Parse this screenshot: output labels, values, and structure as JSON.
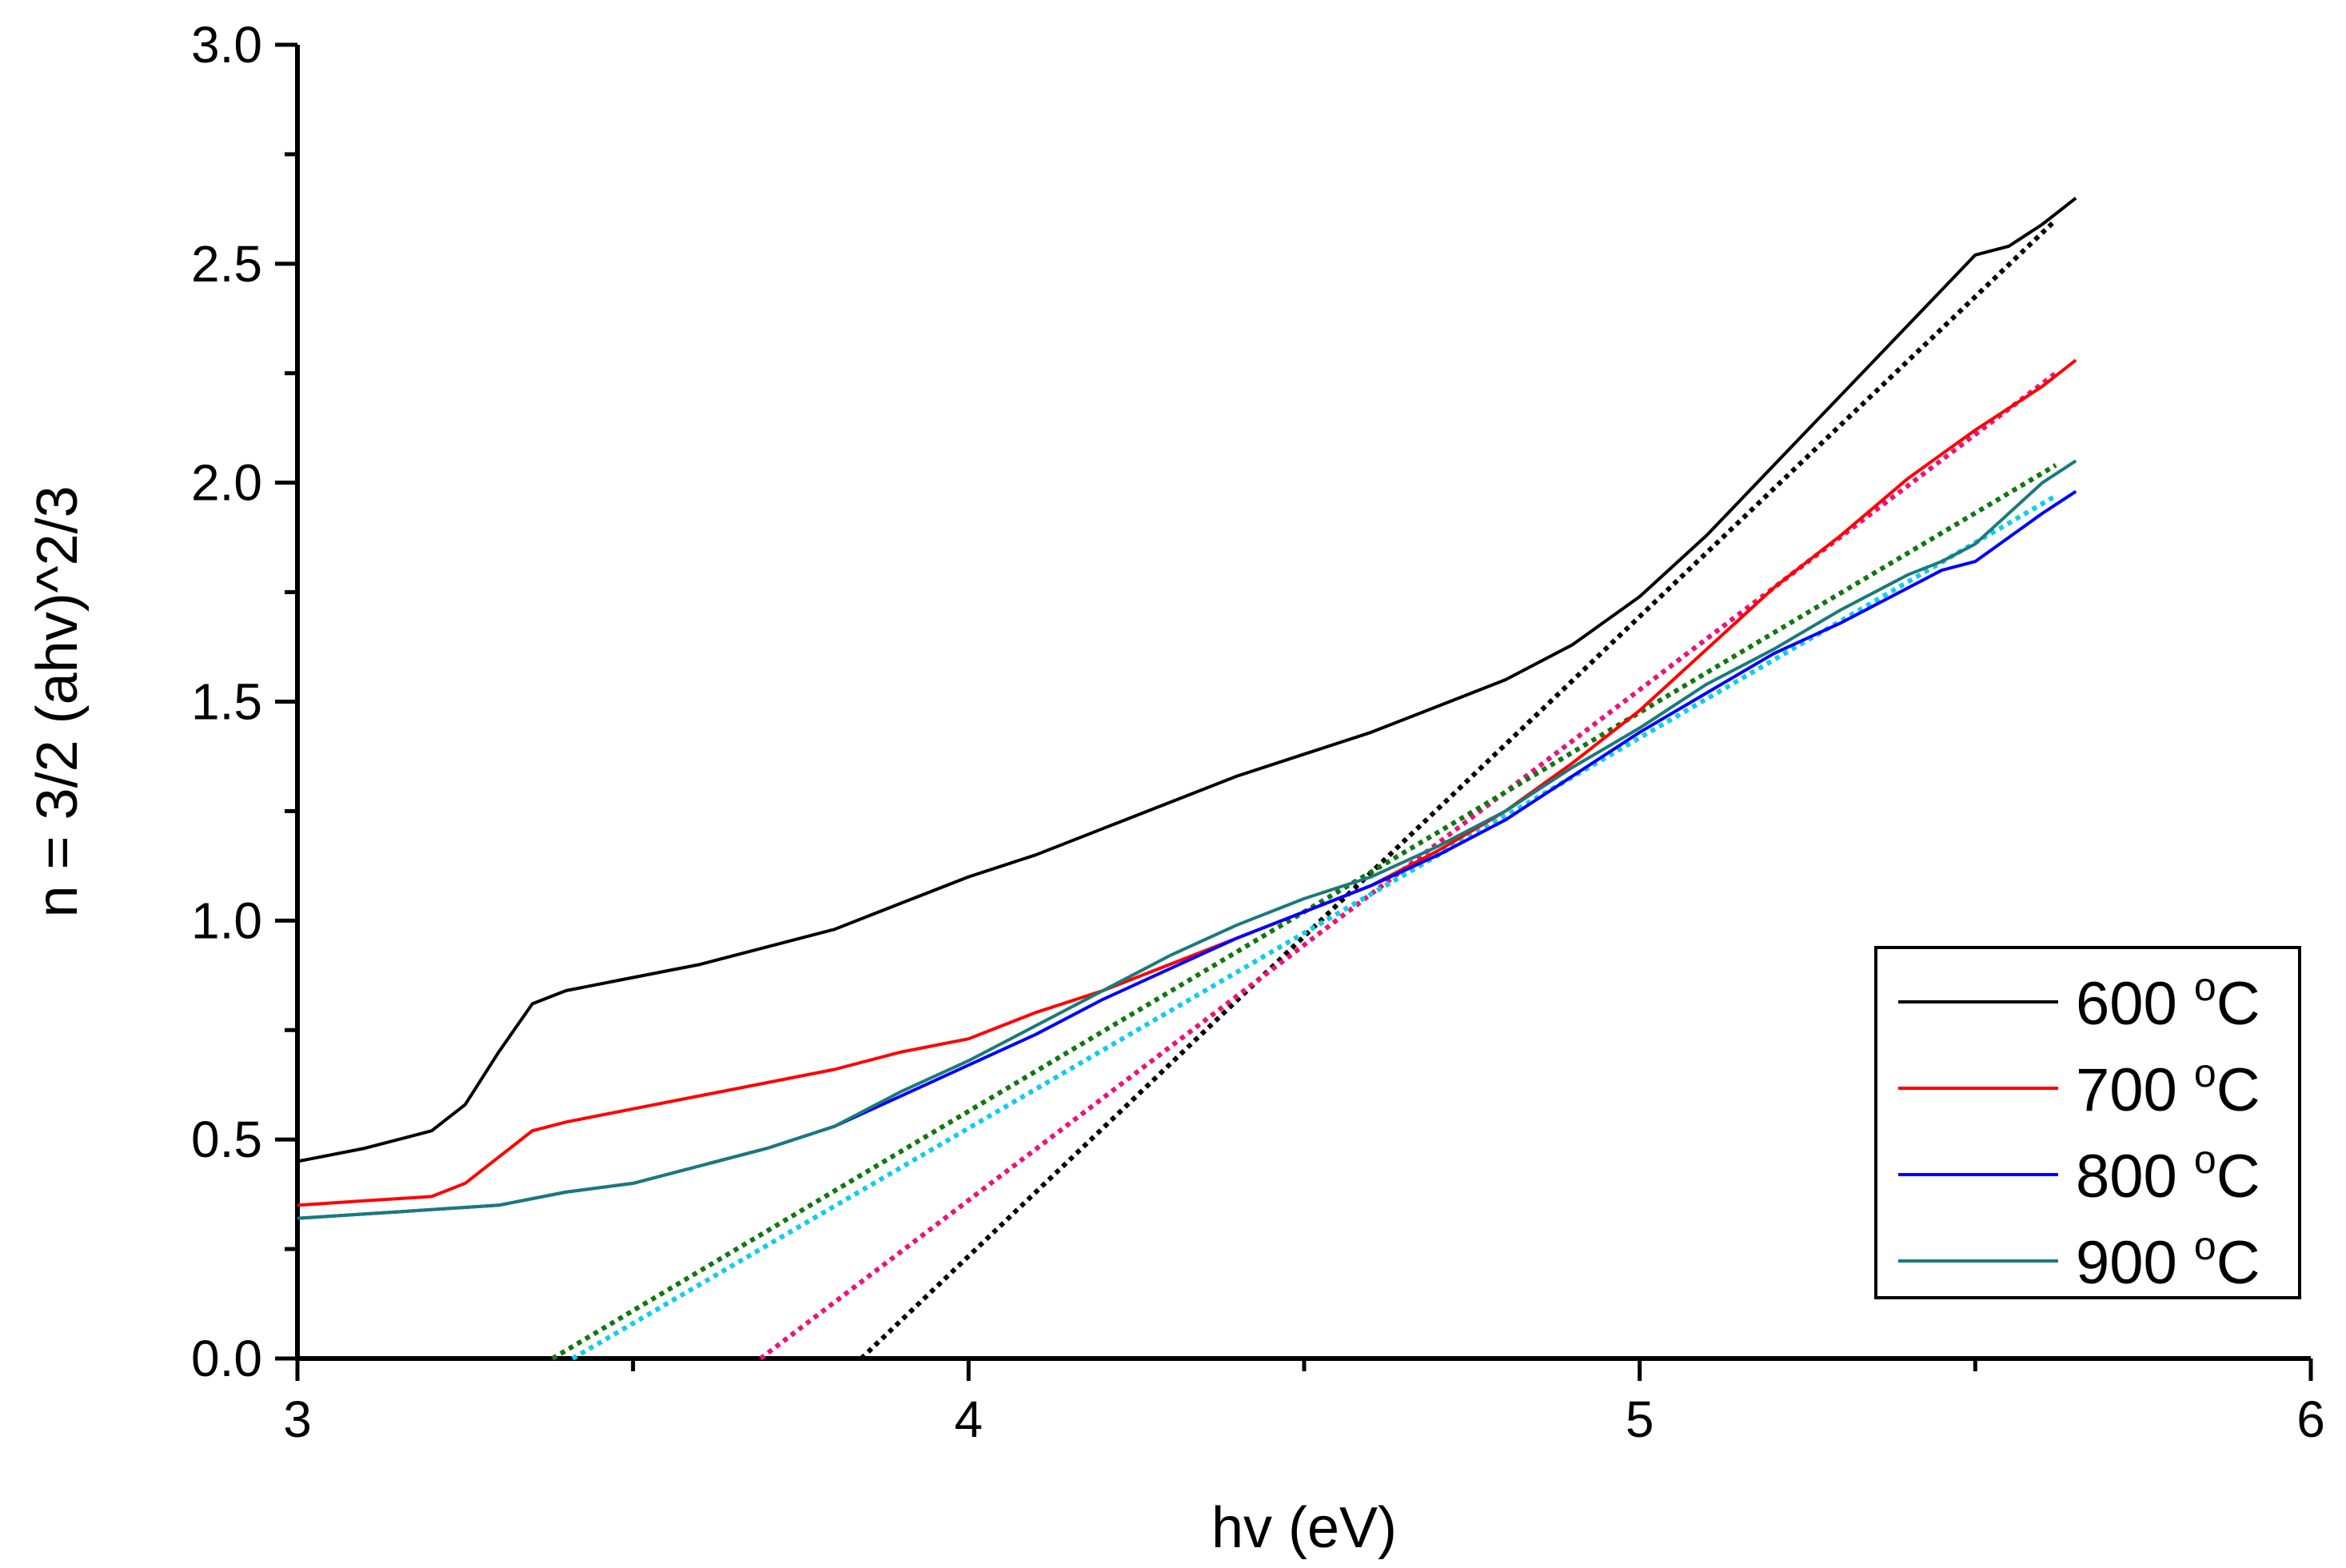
{
  "chart_data": {
    "type": "line",
    "title": "",
    "xlabel": "hv (eV)",
    "ylabel": "n = 3/2 (ahv)^2/3",
    "xlim": [
      3,
      6
    ],
    "ylim": [
      0,
      3
    ],
    "x_ticks": [
      "3",
      "4",
      "5",
      "6"
    ],
    "y_ticks": [
      "0.0",
      "0.5",
      "1.0",
      "1.5",
      "2.0",
      "2.5",
      "3.0"
    ],
    "grid": false,
    "legend_position": "bottom-right",
    "series": [
      {
        "name": "600 °C",
        "label_main": "600 ",
        "label_sup": "o",
        "label_unit": "C",
        "color": "#000000",
        "points": [
          [
            3.0,
            0.45
          ],
          [
            3.1,
            0.48
          ],
          [
            3.2,
            0.52
          ],
          [
            3.25,
            0.58
          ],
          [
            3.3,
            0.7
          ],
          [
            3.35,
            0.81
          ],
          [
            3.4,
            0.84
          ],
          [
            3.5,
            0.87
          ],
          [
            3.6,
            0.9
          ],
          [
            3.7,
            0.94
          ],
          [
            3.8,
            0.98
          ],
          [
            3.9,
            1.04
          ],
          [
            4.0,
            1.1
          ],
          [
            4.1,
            1.15
          ],
          [
            4.2,
            1.21
          ],
          [
            4.3,
            1.27
          ],
          [
            4.4,
            1.33
          ],
          [
            4.5,
            1.38
          ],
          [
            4.6,
            1.43
          ],
          [
            4.7,
            1.49
          ],
          [
            4.8,
            1.55
          ],
          [
            4.9,
            1.63
          ],
          [
            5.0,
            1.74
          ],
          [
            5.1,
            1.88
          ],
          [
            5.2,
            2.04
          ],
          [
            5.3,
            2.2
          ],
          [
            5.4,
            2.36
          ],
          [
            5.5,
            2.52
          ],
          [
            5.55,
            2.54
          ],
          [
            5.6,
            2.59
          ],
          [
            5.65,
            2.65
          ]
        ],
        "fit": [
          [
            3.84,
            0.0
          ],
          [
            5.62,
            2.6
          ]
        ]
      },
      {
        "name": "700 °C",
        "label_main": "700 ",
        "label_sup": "o",
        "label_unit": "C",
        "color": "#ff0000",
        "fit_color": "#ee1177",
        "points": [
          [
            3.0,
            0.35
          ],
          [
            3.1,
            0.36
          ],
          [
            3.2,
            0.37
          ],
          [
            3.25,
            0.4
          ],
          [
            3.3,
            0.46
          ],
          [
            3.35,
            0.52
          ],
          [
            3.4,
            0.54
          ],
          [
            3.5,
            0.57
          ],
          [
            3.6,
            0.6
          ],
          [
            3.7,
            0.63
          ],
          [
            3.8,
            0.66
          ],
          [
            3.9,
            0.7
          ],
          [
            4.0,
            0.73
          ],
          [
            4.1,
            0.79
          ],
          [
            4.2,
            0.84
          ],
          [
            4.3,
            0.9
          ],
          [
            4.4,
            0.96
          ],
          [
            4.5,
            1.02
          ],
          [
            4.6,
            1.08
          ],
          [
            4.7,
            1.16
          ],
          [
            4.8,
            1.25
          ],
          [
            4.9,
            1.36
          ],
          [
            5.0,
            1.48
          ],
          [
            5.1,
            1.62
          ],
          [
            5.2,
            1.76
          ],
          [
            5.3,
            1.88
          ],
          [
            5.4,
            2.01
          ],
          [
            5.5,
            2.12
          ],
          [
            5.6,
            2.22
          ],
          [
            5.65,
            2.28
          ]
        ],
        "fit": [
          [
            3.69,
            0.0
          ],
          [
            5.62,
            2.25
          ]
        ]
      },
      {
        "name": "800 °C",
        "label_main": "800 ",
        "label_sup": "o",
        "label_unit": "C",
        "color": "#0000ff",
        "fit_color": "#11ccee",
        "points": [
          [
            3.0,
            0.32
          ],
          [
            3.1,
            0.33
          ],
          [
            3.2,
            0.34
          ],
          [
            3.3,
            0.35
          ],
          [
            3.4,
            0.38
          ],
          [
            3.5,
            0.4
          ],
          [
            3.6,
            0.44
          ],
          [
            3.7,
            0.48
          ],
          [
            3.8,
            0.53
          ],
          [
            3.9,
            0.6
          ],
          [
            4.0,
            0.67
          ],
          [
            4.1,
            0.74
          ],
          [
            4.2,
            0.82
          ],
          [
            4.3,
            0.89
          ],
          [
            4.4,
            0.96
          ],
          [
            4.5,
            1.02
          ],
          [
            4.6,
            1.08
          ],
          [
            4.7,
            1.15
          ],
          [
            4.8,
            1.23
          ],
          [
            4.9,
            1.33
          ],
          [
            5.0,
            1.43
          ],
          [
            5.1,
            1.52
          ],
          [
            5.2,
            1.61
          ],
          [
            5.3,
            1.68
          ],
          [
            5.4,
            1.76
          ],
          [
            5.45,
            1.8
          ],
          [
            5.5,
            1.82
          ],
          [
            5.6,
            1.93
          ],
          [
            5.65,
            1.98
          ]
        ],
        "fit": [
          [
            3.41,
            0.0
          ],
          [
            5.62,
            1.97
          ]
        ]
      },
      {
        "name": "900 °C",
        "label_main": "900 ",
        "label_sup": "o",
        "label_unit": "C",
        "color": "#1a7a7a",
        "fit_color": "#117711",
        "points": [
          [
            3.0,
            0.32
          ],
          [
            3.1,
            0.33
          ],
          [
            3.2,
            0.34
          ],
          [
            3.3,
            0.35
          ],
          [
            3.4,
            0.38
          ],
          [
            3.5,
            0.4
          ],
          [
            3.6,
            0.44
          ],
          [
            3.7,
            0.48
          ],
          [
            3.8,
            0.53
          ],
          [
            3.9,
            0.61
          ],
          [
            4.0,
            0.68
          ],
          [
            4.1,
            0.76
          ],
          [
            4.2,
            0.84
          ],
          [
            4.3,
            0.92
          ],
          [
            4.4,
            0.99
          ],
          [
            4.5,
            1.05
          ],
          [
            4.6,
            1.1
          ],
          [
            4.7,
            1.17
          ],
          [
            4.8,
            1.25
          ],
          [
            4.9,
            1.35
          ],
          [
            5.0,
            1.44
          ],
          [
            5.1,
            1.54
          ],
          [
            5.2,
            1.62
          ],
          [
            5.3,
            1.71
          ],
          [
            5.4,
            1.79
          ],
          [
            5.45,
            1.82
          ],
          [
            5.5,
            1.86
          ],
          [
            5.6,
            2.0
          ],
          [
            5.65,
            2.05
          ]
        ],
        "fit": [
          [
            3.38,
            0.0
          ],
          [
            5.62,
            2.04
          ]
        ]
      }
    ]
  }
}
